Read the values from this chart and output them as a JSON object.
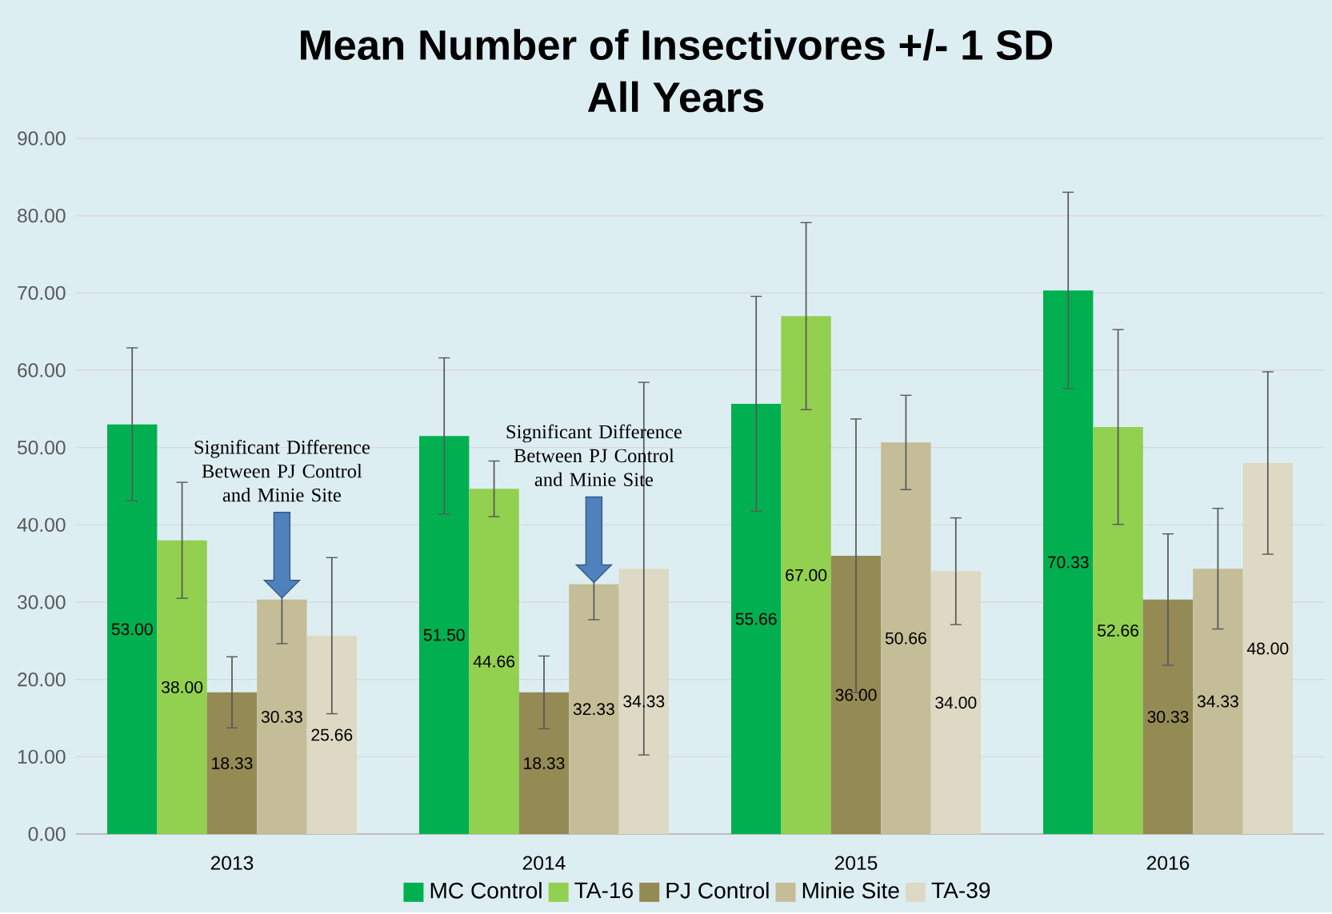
{
  "chart_data": {
    "type": "bar",
    "title": "Mean Number of Insectivores +/- 1 SD",
    "subtitle": "All Years",
    "categories": [
      "2013",
      "2014",
      "2015",
      "2016"
    ],
    "series": [
      {
        "name": "MC Control",
        "color": "#00b050",
        "values": [
          53.0,
          51.5,
          55.66,
          70.33
        ],
        "errors": [
          9.9,
          10.1,
          13.9,
          12.7
        ],
        "value_labels": [
          "53.00",
          "51.50",
          "55.66",
          "70.33"
        ]
      },
      {
        "name": "TA-16",
        "color": "#92d050",
        "values": [
          38.0,
          44.66,
          67.0,
          52.66
        ],
        "errors": [
          7.5,
          3.6,
          12.1,
          12.6
        ],
        "value_labels": [
          "38.00",
          "44.66",
          "67.00",
          "52.66"
        ]
      },
      {
        "name": "PJ Control",
        "color": "#948a54",
        "values": [
          18.33,
          18.33,
          36.0,
          30.33
        ],
        "errors": [
          4.6,
          4.7,
          17.7,
          8.5
        ],
        "value_labels": [
          "18.33",
          "18.33",
          "36.00",
          "30.33"
        ]
      },
      {
        "name": "Minie Site",
        "color": "#c4bd97",
        "values": [
          30.33,
          32.33,
          50.66,
          34.33
        ],
        "errors": [
          5.7,
          4.6,
          6.1,
          7.8
        ],
        "value_labels": [
          "30.33",
          "32.33",
          "50.66",
          "34.33"
        ]
      },
      {
        "name": "TA-39",
        "color": "#ddd9c4",
        "values": [
          25.66,
          34.33,
          34.0,
          48.0
        ],
        "errors": [
          10.1,
          24.1,
          6.9,
          11.8
        ],
        "value_labels": [
          "25.66",
          "34.33",
          "34.00",
          "48.00"
        ]
      }
    ],
    "ylim": [
      0,
      90
    ],
    "yticks": [
      {
        "value": 0,
        "label": "0.00"
      },
      {
        "value": 10,
        "label": "10.00"
      },
      {
        "value": 20,
        "label": "20.00"
      },
      {
        "value": 30,
        "label": "30.00"
      },
      {
        "value": 40,
        "label": "40.00"
      },
      {
        "value": 50,
        "label": "50.00"
      },
      {
        "value": 60,
        "label": "60.00"
      },
      {
        "value": 70,
        "label": "70.00"
      },
      {
        "value": 80,
        "label": "80.00"
      },
      {
        "value": 90,
        "label": "90.00"
      }
    ],
    "grid": "y",
    "legend": "bottom",
    "annotations": [
      "Significant Difference Between PJ Control and Minie Site",
      "Significant Difference Between PJ Control and Minie Site"
    ]
  }
}
